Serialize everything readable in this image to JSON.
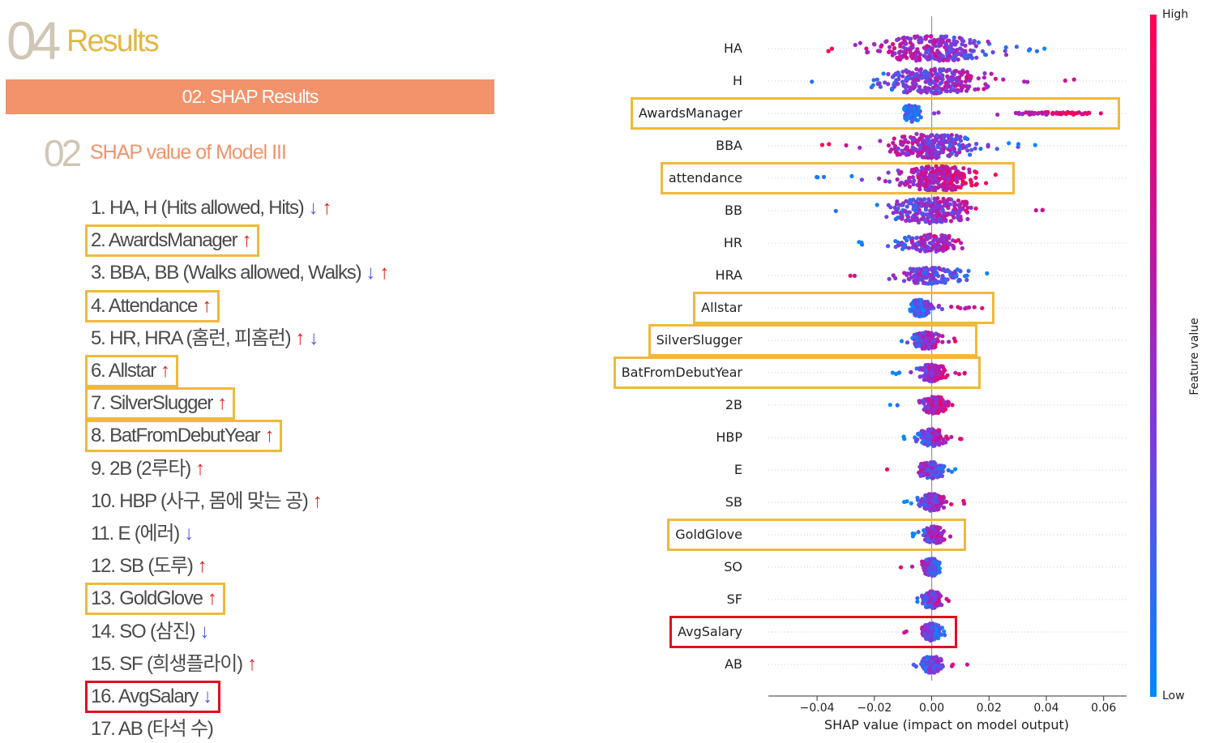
{
  "slide": {
    "number": "04",
    "title": "Results",
    "banner": "02. SHAP Results",
    "sub_number": "02",
    "sub_title": "SHAP value of Model III"
  },
  "ranking": [
    {
      "text": "1. HA, H (Hits allowed, Hits)",
      "arrows": [
        "down",
        "up"
      ],
      "box": null
    },
    {
      "text": "2. AwardsManager",
      "arrows": [
        "up"
      ],
      "box": "yellow"
    },
    {
      "text": "3. BBA, BB (Walks allowed, Walks)",
      "arrows": [
        "down",
        "up"
      ],
      "box": null
    },
    {
      "text": "4. Attendance",
      "arrows": [
        "up"
      ],
      "box": "yellow"
    },
    {
      "text": "5. HR, HRA (홈런, 피홈런)",
      "arrows": [
        "up",
        "down"
      ],
      "box": null
    },
    {
      "text": "6. Allstar",
      "arrows": [
        "up"
      ],
      "box": "yellow"
    },
    {
      "text": "7. SilverSlugger",
      "arrows": [
        "up"
      ],
      "box": "yellow"
    },
    {
      "text": "8. BatFromDebutYear",
      "arrows": [
        "up"
      ],
      "box": "yellow"
    },
    {
      "text": "9. 2B (2루타)",
      "arrows": [
        "up"
      ],
      "box": null
    },
    {
      "text": "10. HBP (사구, 몸에 맞는 공)",
      "arrows": [
        "up"
      ],
      "box": null
    },
    {
      "text": "11. E (에러)",
      "arrows": [
        "down"
      ],
      "box": null
    },
    {
      "text": "12. SB (도루)",
      "arrows": [
        "up"
      ],
      "box": null
    },
    {
      "text": "13. GoldGlove",
      "arrows": [
        "up"
      ],
      "box": "yellow"
    },
    {
      "text": "14. SO (삼진)",
      "arrows": [
        "down"
      ],
      "box": null
    },
    {
      "text": "15. SF (희생플라이)",
      "arrows": [
        "up"
      ],
      "box": null
    },
    {
      "text": "16. AvgSalary",
      "arrows": [
        "down"
      ],
      "box": "red"
    },
    {
      "text": "17. AB (타석 수)",
      "arrows": [],
      "box": null
    }
  ],
  "arrow_glyphs": {
    "up": "↑",
    "down": "↓"
  },
  "chart_data": {
    "type": "scatter",
    "subtype": "shap-beeswarm",
    "xlabel": "SHAP value (impact on model output)",
    "xlim": [
      -0.057,
      0.068
    ],
    "xticks": [
      -0.04,
      -0.02,
      0.0,
      0.02,
      0.04,
      0.06
    ],
    "xtick_labels": [
      "−0.04",
      "−0.02",
      "0.00",
      "0.02",
      "0.04",
      "0.06"
    ],
    "colorbar": {
      "title": "Feature value",
      "high_label": "High",
      "low_label": "Low",
      "high_color": "#ff0052",
      "low_color": "#008bfb"
    },
    "features": [
      {
        "name": "HA",
        "min": -0.051,
        "max": 0.054,
        "center": 0.0,
        "spread": 0.018,
        "high_side": "negative",
        "box": null
      },
      {
        "name": "H",
        "min": -0.048,
        "max": 0.053,
        "center": 0.0,
        "spread": 0.017,
        "high_side": "positive",
        "box": null
      },
      {
        "name": "AwardsManager",
        "min": -0.014,
        "max": 0.062,
        "center": -0.007,
        "spread": 0.003,
        "high_side": "positive",
        "high_cluster": [
          0.03,
          0.055
        ],
        "box": "yellow"
      },
      {
        "name": "BBA",
        "min": -0.042,
        "max": 0.041,
        "center": 0.0,
        "spread": 0.014,
        "high_side": "negative",
        "box": null
      },
      {
        "name": "attendance",
        "min": -0.047,
        "max": 0.025,
        "center": 0.002,
        "spread": 0.012,
        "high_side": "positive",
        "box": "yellow"
      },
      {
        "name": "BB",
        "min": -0.038,
        "max": 0.043,
        "center": 0.0,
        "spread": 0.013,
        "high_side": "positive",
        "box": null
      },
      {
        "name": "HR",
        "min": -0.027,
        "max": 0.021,
        "center": 0.0,
        "spread": 0.01,
        "high_side": "positive",
        "box": null
      },
      {
        "name": "HRA",
        "min": -0.039,
        "max": 0.021,
        "center": 0.0,
        "spread": 0.01,
        "high_side": "negative",
        "box": null
      },
      {
        "name": "Allstar",
        "min": -0.009,
        "max": 0.018,
        "center": -0.004,
        "spread": 0.003,
        "high_side": "positive",
        "box": "yellow"
      },
      {
        "name": "SilverSlugger",
        "min": -0.014,
        "max": 0.012,
        "center": -0.002,
        "spread": 0.004,
        "high_side": "positive",
        "box": "yellow"
      },
      {
        "name": "BatFromDebutYear",
        "min": -0.017,
        "max": 0.013,
        "center": 0.0,
        "spread": 0.004,
        "high_side": "positive",
        "box": "yellow"
      },
      {
        "name": "2B",
        "min": -0.016,
        "max": 0.01,
        "center": 0.001,
        "spread": 0.004,
        "high_side": "positive",
        "box": null
      },
      {
        "name": "HBP",
        "min": -0.01,
        "max": 0.011,
        "center": 0.0,
        "spread": 0.004,
        "high_side": "positive",
        "box": null
      },
      {
        "name": "E",
        "min": -0.016,
        "max": 0.009,
        "center": 0.0,
        "spread": 0.004,
        "high_side": "negative",
        "box": null
      },
      {
        "name": "SB",
        "min": -0.01,
        "max": 0.014,
        "center": 0.0,
        "spread": 0.004,
        "high_side": "positive",
        "box": null
      },
      {
        "name": "GoldGlove",
        "min": -0.007,
        "max": 0.008,
        "center": 0.001,
        "spread": 0.003,
        "high_side": "positive",
        "box": "yellow"
      },
      {
        "name": "SO",
        "min": -0.014,
        "max": 0.006,
        "center": 0.0,
        "spread": 0.003,
        "high_side": "negative",
        "box": null
      },
      {
        "name": "SF",
        "min": -0.007,
        "max": 0.009,
        "center": 0.0,
        "spread": 0.003,
        "high_side": "positive",
        "box": null
      },
      {
        "name": "AvgSalary",
        "min": -0.01,
        "max": 0.005,
        "center": 0.0,
        "spread": 0.003,
        "high_side": "negative",
        "box": "red"
      },
      {
        "name": "AB",
        "min": -0.007,
        "max": 0.014,
        "center": 0.0,
        "spread": 0.003,
        "high_side": "positive",
        "box": null
      }
    ]
  }
}
